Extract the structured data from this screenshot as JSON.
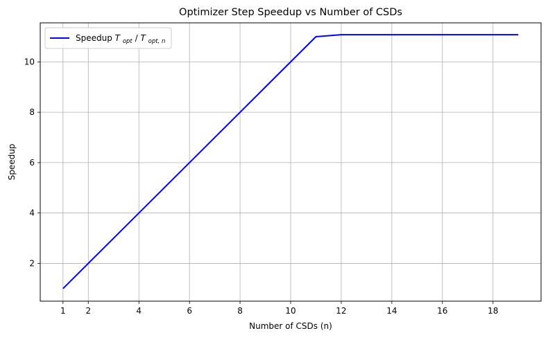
{
  "chart_data": {
    "type": "line",
    "title": "Optimizer Step Speedup vs Number of CSDs",
    "xlabel": "Number of CSDs (n)",
    "ylabel": "Speedup",
    "xlim": [
      0.1,
      19.9
    ],
    "ylim": [
      0.5,
      11.55
    ],
    "xticks": [
      1,
      2,
      4,
      6,
      8,
      10,
      12,
      14,
      16,
      18
    ],
    "yticks": [
      2,
      4,
      6,
      8,
      10
    ],
    "grid": true,
    "legend_position": "top-left",
    "x": [
      1,
      2,
      3,
      4,
      5,
      6,
      7,
      8,
      9,
      10,
      11,
      12,
      13,
      14,
      15,
      16,
      17,
      18,
      19
    ],
    "series": [
      {
        "name": "Speedup T_opt/T_opt,n",
        "legend_main": "Speedup ",
        "legend_T1": "T",
        "legend_sub1": "opt",
        "legend_slash": "/",
        "legend_T2": "T",
        "legend_sub2": "opt, n",
        "color": "#0000ff",
        "values": [
          1,
          2,
          3,
          4,
          5,
          6,
          7,
          8,
          9,
          10,
          11,
          11.08,
          11.08,
          11.08,
          11.08,
          11.08,
          11.08,
          11.08,
          11.08
        ]
      }
    ]
  }
}
